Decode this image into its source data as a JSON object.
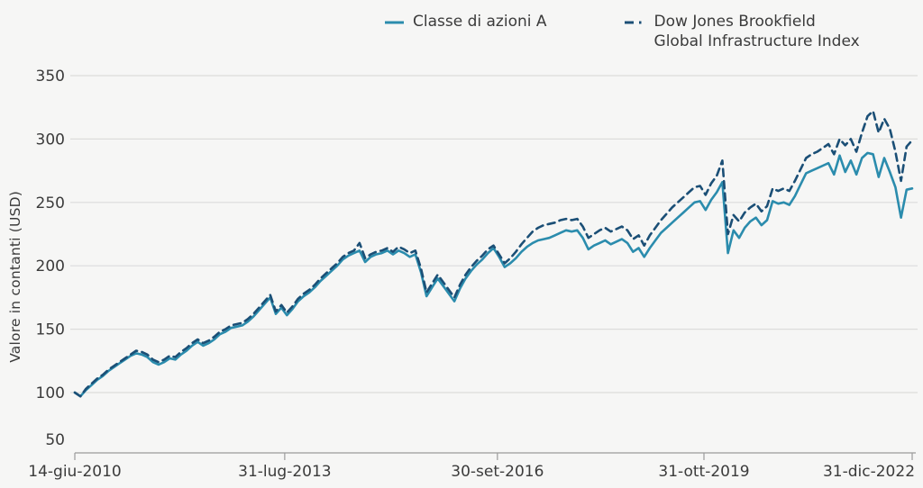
{
  "legend": {
    "series_a_label": "Classe di azioni A",
    "series_b_label_line1": "Dow Jones Brookfield",
    "series_b_label_line2": "Global Infrastructure Index"
  },
  "axes": {
    "y_title": "Valore in contanti (USD)"
  },
  "colors": {
    "background": "#f6f6f5",
    "gridline": "#dcdcdb",
    "axis": "#9b9b9b",
    "text": "#3b3b3b",
    "series_a": "#2b8cad",
    "series_b": "#1b4f76"
  },
  "chart_data": {
    "type": "line",
    "title": "",
    "xlabel": "",
    "ylabel": "Valore in contanti (USD)",
    "ylim": [
      50,
      350
    ],
    "yticks": [
      50,
      100,
      150,
      200,
      250,
      300,
      350
    ],
    "grid": "horizontal",
    "legend_position": "top",
    "x_frequency": "monthly",
    "x_range": [
      "14-giu-2010",
      "31-dic-2022"
    ],
    "x_tick_labels": [
      "14-giu-2010",
      "31-lug-2013",
      "30-set-2016",
      "31-ott-2019",
      "31-dic-2022"
    ],
    "x_tick_month_index": [
      0,
      37.6,
      75.7,
      112.7,
      150
    ],
    "series": [
      {
        "name": "Classe di azioni A",
        "style": "solid",
        "color": "#2b8cad",
        "values": [
          100,
          97,
          102,
          106,
          110,
          113,
          117,
          120,
          123,
          126,
          129,
          131,
          130,
          128,
          124,
          122,
          124,
          127,
          126,
          130,
          133,
          137,
          140,
          137,
          139,
          142,
          146,
          148,
          151,
          152,
          153,
          156,
          160,
          165,
          170,
          175,
          162,
          167,
          161,
          166,
          172,
          176,
          179,
          183,
          188,
          192,
          196,
          200,
          205,
          208,
          210,
          212,
          203,
          207,
          209,
          210,
          212,
          209,
          212,
          210,
          207,
          209,
          195,
          176,
          183,
          190,
          184,
          178,
          172,
          182,
          190,
          196,
          201,
          205,
          210,
          214,
          207,
          199,
          202,
          206,
          211,
          215,
          218,
          220,
          221,
          222,
          224,
          226,
          228,
          227,
          228,
          222,
          213,
          216,
          218,
          220,
          217,
          219,
          221,
          218,
          211,
          214,
          207,
          214,
          220,
          226,
          230,
          234,
          238,
          242,
          246,
          250,
          251,
          244,
          252,
          258,
          266,
          210,
          228,
          222,
          230,
          235,
          238,
          232,
          236,
          251,
          249,
          250,
          248,
          255,
          264,
          273,
          275,
          277,
          279,
          281,
          272,
          287,
          274,
          283,
          272,
          285,
          289,
          288,
          270,
          285,
          274,
          262,
          238,
          260,
          261
        ]
      },
      {
        "name": "Dow Jones Brookfield Global Infrastructure Index",
        "style": "dashed",
        "color": "#1b4f76",
        "values": [
          100,
          97,
          103,
          107,
          111,
          114,
          118,
          121,
          124,
          127,
          130,
          133,
          132,
          130,
          126,
          124,
          126,
          129,
          128,
          132,
          135,
          139,
          142,
          139,
          141,
          144,
          148,
          150,
          153,
          154,
          155,
          158,
          162,
          167,
          172,
          177,
          164,
          169,
          163,
          168,
          174,
          178,
          181,
          185,
          190,
          194,
          198,
          202,
          207,
          210,
          212,
          218,
          206,
          209,
          211,
          212,
          214,
          211,
          215,
          213,
          210,
          212,
          198,
          179,
          186,
          193,
          187,
          181,
          175,
          185,
          193,
          199,
          204,
          208,
          213,
          216,
          209,
          202,
          206,
          211,
          217,
          222,
          227,
          230,
          232,
          233,
          234,
          236,
          237,
          236,
          237,
          231,
          222,
          225,
          228,
          230,
          227,
          229,
          231,
          228,
          221,
          224,
          216,
          224,
          230,
          236,
          241,
          246,
          250,
          254,
          258,
          262,
          263,
          256,
          265,
          271,
          283,
          225,
          240,
          235,
          242,
          246,
          249,
          243,
          247,
          261,
          259,
          261,
          259,
          267,
          276,
          285,
          288,
          290,
          293,
          296,
          288,
          300,
          295,
          300,
          290,
          305,
          318,
          322,
          305,
          316,
          308,
          290,
          267,
          294,
          299
        ]
      }
    ]
  }
}
